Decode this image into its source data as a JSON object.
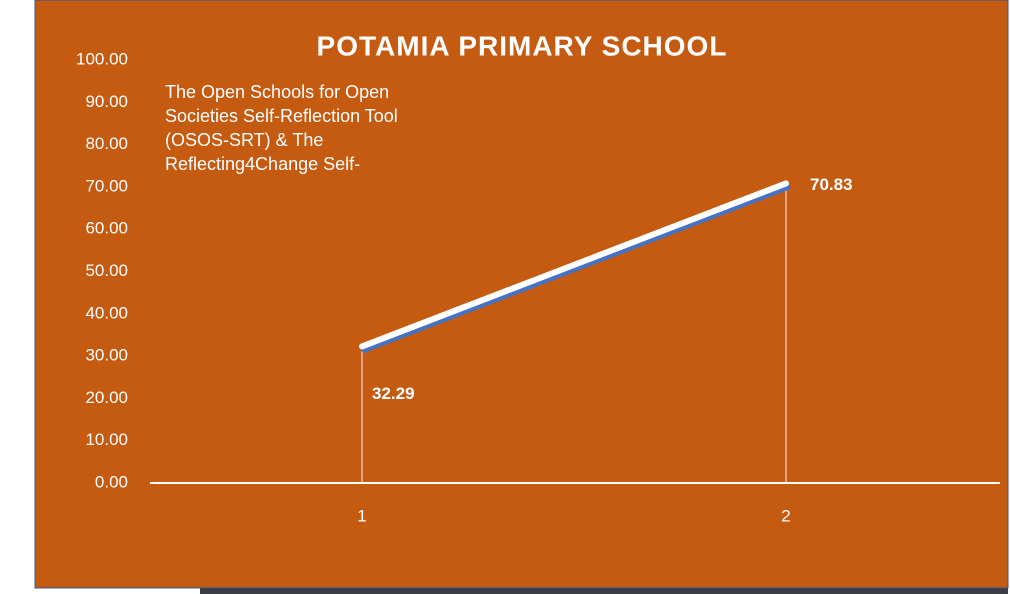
{
  "chart_data": {
    "type": "line",
    "title": "POTAMIA PRIMARY SCHOOL",
    "annotation": [
      "The Open Schools for Open",
      "Societies Self-Reflection Tool",
      "(OSOS-SRT) & The",
      "Reflecting4Change Self-"
    ],
    "categories": [
      "1",
      "2"
    ],
    "values": [
      32.29,
      70.83
    ],
    "color": "#ffffff",
    "shadow_color": "#4472c4",
    "background": "#c55a11",
    "ylim": [
      0,
      100
    ],
    "yticks": [
      {
        "value": 0,
        "label": "0.00"
      },
      {
        "value": 10,
        "label": "10.00"
      },
      {
        "value": 20,
        "label": "20.00"
      },
      {
        "value": 30,
        "label": "30.00"
      },
      {
        "value": 40,
        "label": "40.00"
      },
      {
        "value": 50,
        "label": "50.00"
      },
      {
        "value": 60,
        "label": "60.00"
      },
      {
        "value": 70,
        "label": "70.00"
      },
      {
        "value": 80,
        "label": "80.00"
      },
      {
        "value": 90,
        "label": "90.00"
      },
      {
        "value": 100,
        "label": "100.00"
      }
    ],
    "drop_lines": true
  }
}
